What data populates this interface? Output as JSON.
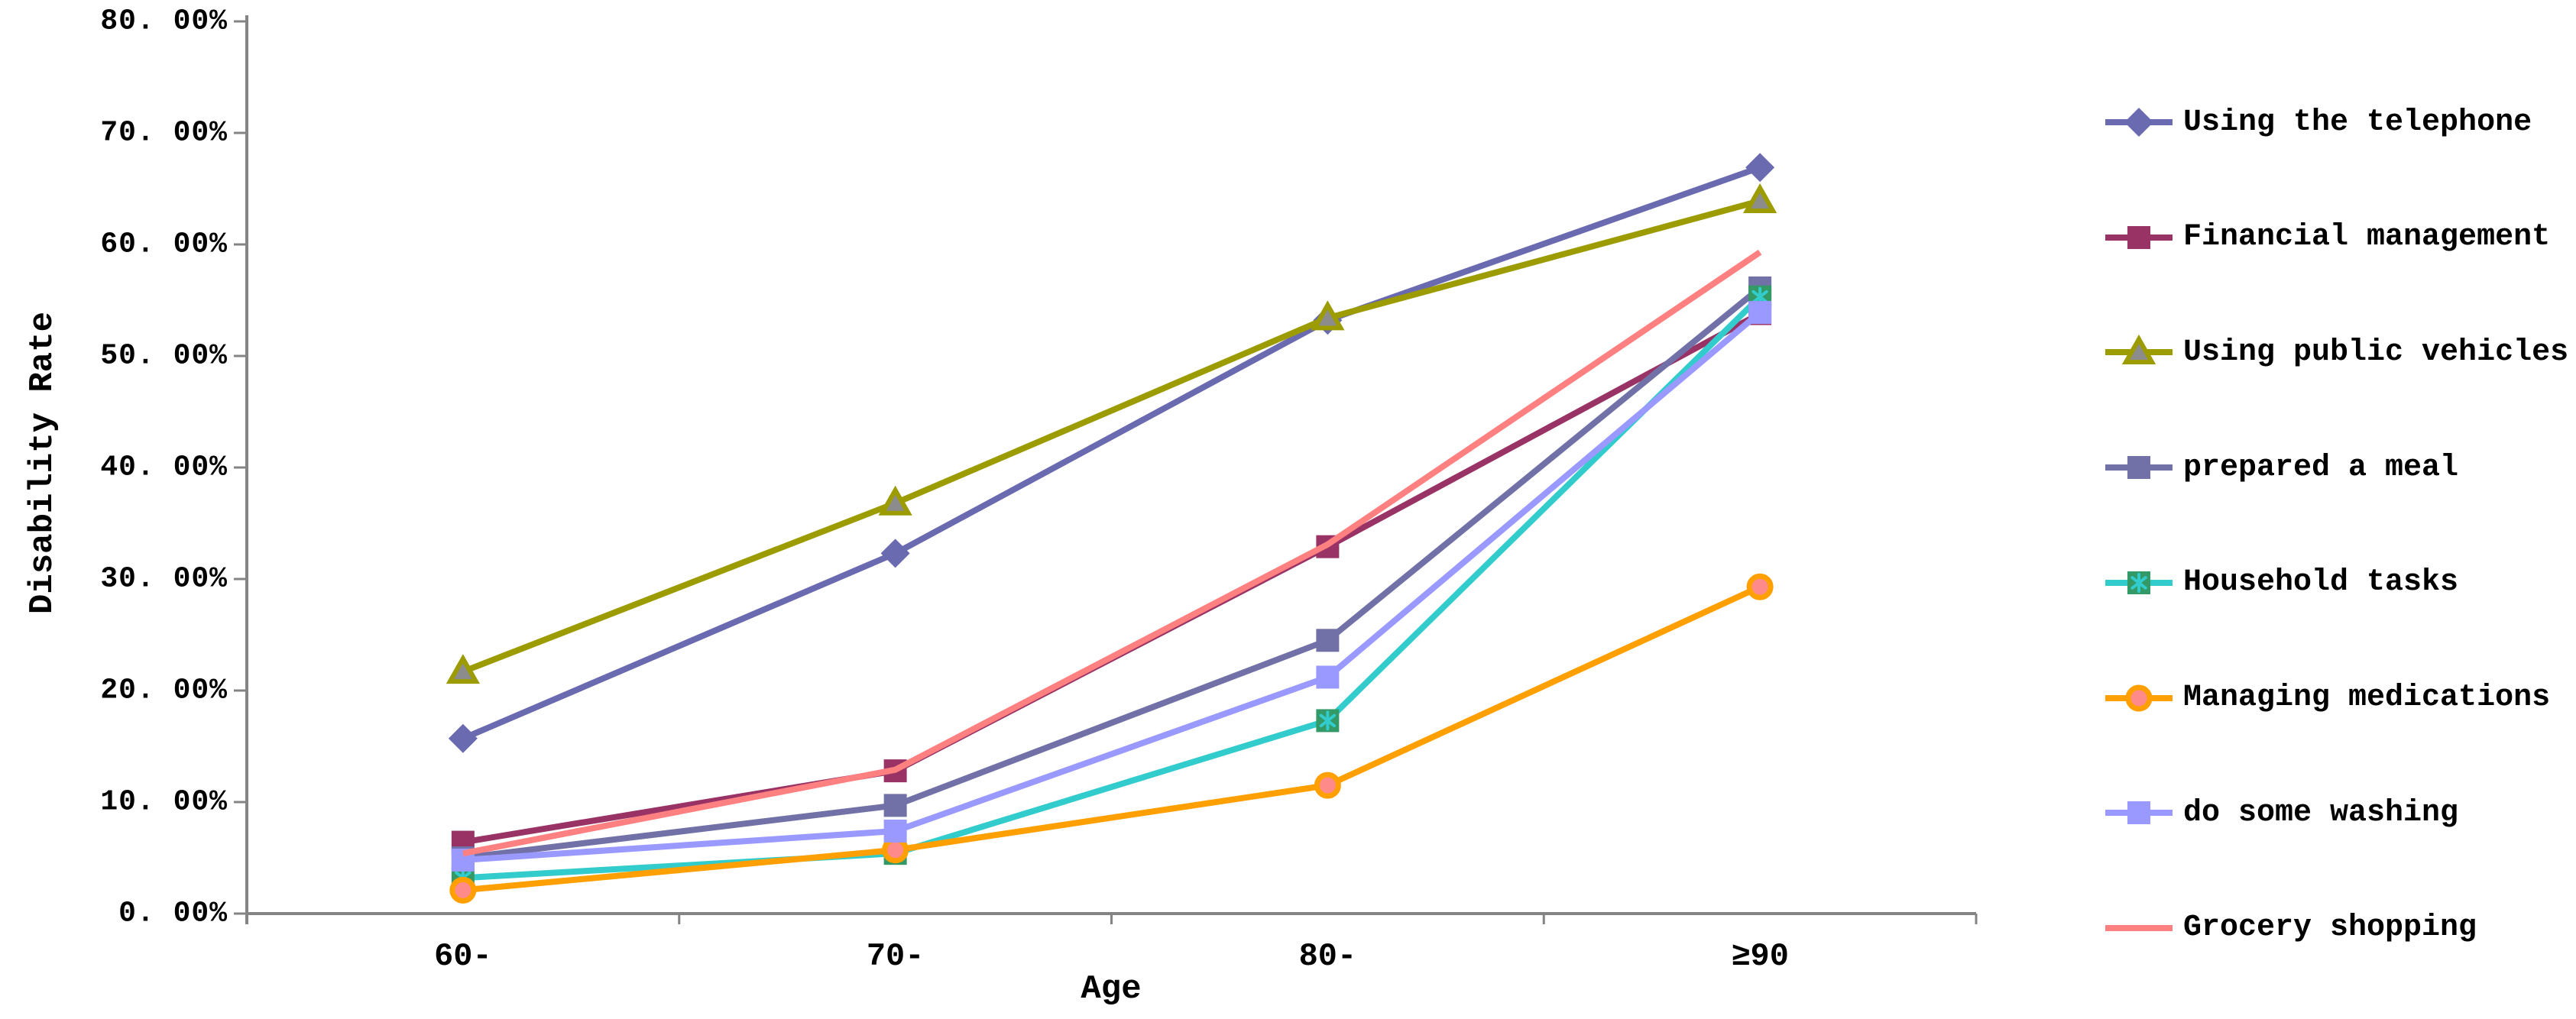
{
  "chart_data": {
    "type": "line",
    "title": "",
    "xlabel": "Age",
    "ylabel": "Disability Rate",
    "categories": [
      "60-",
      "70-",
      "80-",
      "≥90"
    ],
    "ylim": [
      0,
      80
    ],
    "ytick_step": 10,
    "ytick_labels": [
      "0. 00%",
      "10. 00%",
      "20. 00%",
      "30. 00%",
      "40. 00%",
      "50. 00%",
      "60. 00%",
      "70. 00%",
      "80. 00%"
    ],
    "grid": false,
    "legend_position": "right",
    "axis_color": "#848484",
    "series": [
      {
        "name": "Using the telephone",
        "color": "#6A6AB0",
        "marker": "diamond",
        "marker_color": "#6A6AB0",
        "values": [
          15.7,
          32.3,
          53.2,
          66.9
        ]
      },
      {
        "name": "Financial management",
        "color": "#993366",
        "marker": "square",
        "marker_color": "#993366",
        "values": [
          6.4,
          12.8,
          32.9,
          53.8
        ]
      },
      {
        "name": "Using public vehicles",
        "color": "#9C9C00",
        "marker": "triangle",
        "marker_color": "#8C8C8C",
        "values": [
          21.7,
          36.8,
          53.4,
          63.9
        ]
      },
      {
        "name": "prepared a meal",
        "color": "#7171A8",
        "marker": "square",
        "marker_color": "#7171A8",
        "values": [
          5.0,
          9.7,
          24.5,
          56.1
        ]
      },
      {
        "name": "Household tasks",
        "color": "#33CCCC",
        "marker": "square-asterisk",
        "marker_color": "#339966",
        "values": [
          3.2,
          5.4,
          17.3,
          55.3
        ]
      },
      {
        "name": "Managing medications",
        "color": "#FFA000",
        "marker": "circle",
        "marker_color": "#FF8A8A",
        "values": [
          2.1,
          5.7,
          11.5,
          29.3
        ]
      },
      {
        "name": "do some washing",
        "color": "#9999FF",
        "marker": "square",
        "marker_color": "#9999FF",
        "values": [
          4.8,
          7.4,
          21.2,
          53.9
        ]
      },
      {
        "name": "Grocery shopping",
        "color": "#FF8080",
        "marker": "none",
        "marker_color": "#FF8080",
        "values": [
          5.4,
          12.9,
          33.1,
          59.3
        ]
      }
    ]
  }
}
